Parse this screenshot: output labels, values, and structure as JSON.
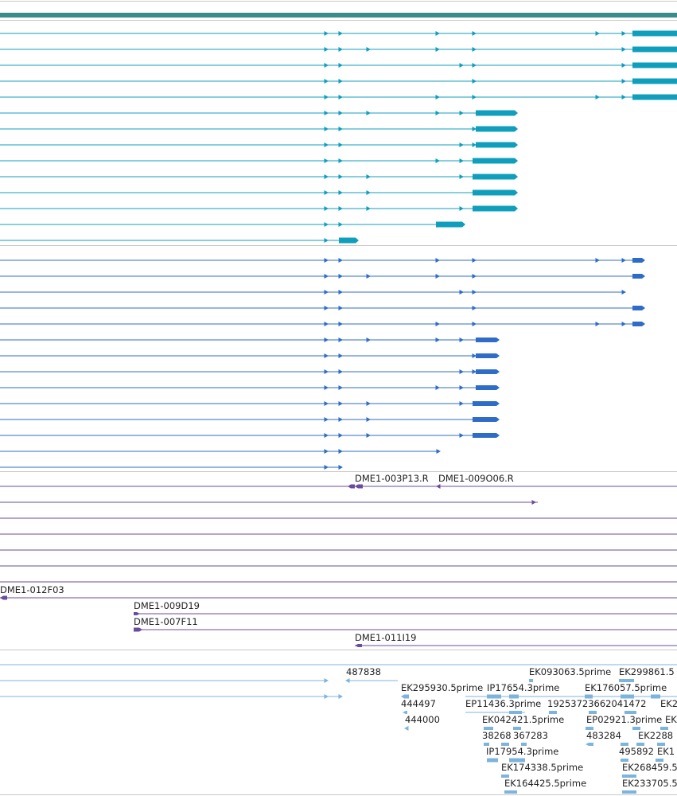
{
  "colors": {
    "ruler": "#3a8c8c",
    "divider": "#c8c8c8",
    "track1": "#0f9fbd",
    "track2": "#2f6cc8",
    "track3": "#6a4c9c",
    "track4": "#7db4dc"
  },
  "track3_labels": [
    "DME1-003P13.R",
    "DME1-009O06.R",
    "DME1-012F03",
    "DME1-009D19",
    "DME1-007F11",
    "DME1-011I19"
  ],
  "track4_labels": [
    "487838",
    "EK093063.5prime",
    "EK299861.5",
    "EK295930.5prime",
    "IP17654.3prime",
    "EK176057.5prime",
    "444497",
    "EP11436.3prime",
    "19253723662041472",
    "EK2",
    "444000",
    "EK042421.5prime",
    "EP02921.3prime",
    "EK",
    "38268",
    "367283",
    "483284",
    "EK2288",
    "IP17954.3prime",
    "495892",
    "EK1",
    "EK174338.5prime",
    "EK268459.5",
    "EK164425.5prime",
    "EK233705.5"
  ]
}
